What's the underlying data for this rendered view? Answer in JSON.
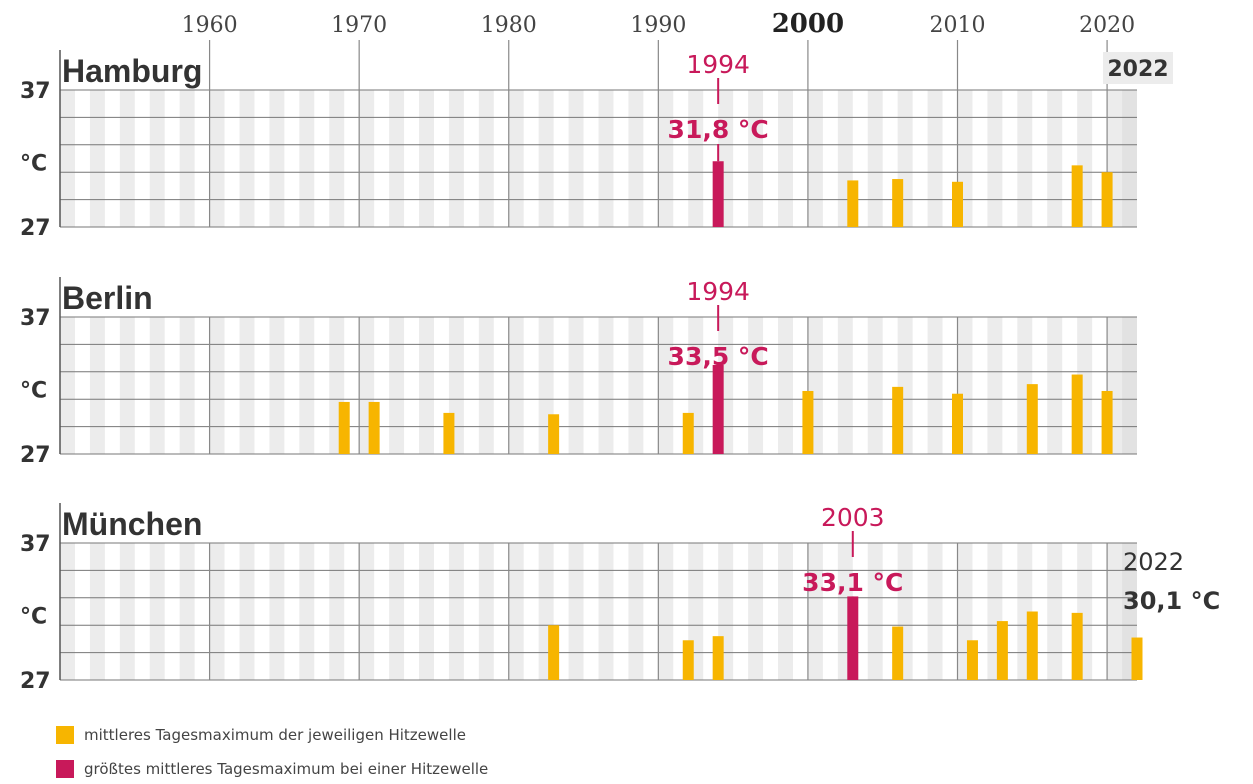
{
  "chart_data": {
    "type": "bar",
    "decade_ticks": [
      "1960",
      "1970",
      "1980",
      "1990",
      "2000",
      "2010",
      "2020"
    ],
    "bold_decade": "2000",
    "xlim": [
      1950,
      2022
    ],
    "ylim": [
      27,
      37
    ],
    "y_tick_labels": [
      "37",
      "°C",
      "27"
    ],
    "colors": {
      "normal": "#f7b500",
      "max": "#c8195a"
    },
    "panels": [
      {
        "name": "Hamburg",
        "bars": [
          {
            "x": 1994,
            "y": 31.8,
            "max": true
          },
          {
            "x": 2003,
            "y": 30.4
          },
          {
            "x": 2006,
            "y": 30.5
          },
          {
            "x": 2010,
            "y": 30.3
          },
          {
            "x": 2018,
            "y": 31.5
          },
          {
            "x": 2020,
            "y": 31.0
          }
        ],
        "highlight": {
          "year": "1994",
          "value": "31,8 °C"
        },
        "end_label": {
          "year": "2022",
          "value": ""
        }
      },
      {
        "name": "Berlin",
        "bars": [
          {
            "x": 1969,
            "y": 30.8
          },
          {
            "x": 1971,
            "y": 30.8
          },
          {
            "x": 1976,
            "y": 30.0
          },
          {
            "x": 1983,
            "y": 29.9
          },
          {
            "x": 1992,
            "y": 30.0
          },
          {
            "x": 1994,
            "y": 33.5,
            "max": true
          },
          {
            "x": 2000,
            "y": 31.6
          },
          {
            "x": 2006,
            "y": 31.9
          },
          {
            "x": 2010,
            "y": 31.4
          },
          {
            "x": 2015,
            "y": 32.1
          },
          {
            "x": 2018,
            "y": 32.8
          },
          {
            "x": 2020,
            "y": 31.6
          }
        ],
        "highlight": {
          "year": "1994",
          "value": "33,5 °C"
        },
        "end_label": {
          "year": "",
          "value": ""
        }
      },
      {
        "name": "München",
        "bars": [
          {
            "x": 1983,
            "y": 31.0
          },
          {
            "x": 1992,
            "y": 29.9
          },
          {
            "x": 1994,
            "y": 30.2
          },
          {
            "x": 2003,
            "y": 33.1,
            "max": true
          },
          {
            "x": 2006,
            "y": 30.9
          },
          {
            "x": 2011,
            "y": 29.9
          },
          {
            "x": 2013,
            "y": 31.3
          },
          {
            "x": 2015,
            "y": 32.0
          },
          {
            "x": 2018,
            "y": 31.9
          },
          {
            "x": 2022,
            "y": 30.1
          }
        ],
        "highlight": {
          "year": "2003",
          "value": "33,1 °C"
        },
        "end_label": {
          "year": "2022",
          "value": "30,1 °C"
        }
      }
    ],
    "legend": [
      {
        "label": "mittleres Tagesmaximum der jeweiligen Hitzewelle",
        "color": "#f7b500"
      },
      {
        "label": "größtes mittleres Tagesmaximum bei einer Hitzewelle",
        "color": "#c8195a"
      }
    ]
  }
}
